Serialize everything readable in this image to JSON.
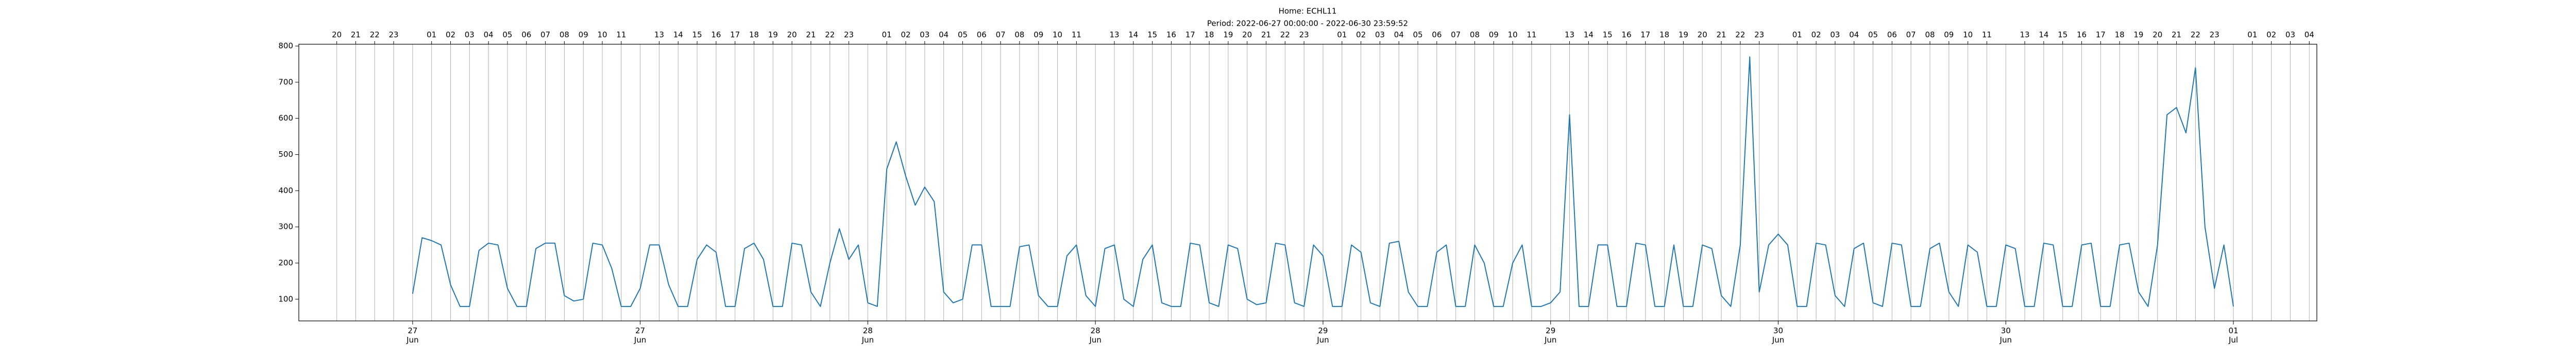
{
  "chart_data": {
    "type": "line",
    "title": "Home: ECHL11",
    "subtitle": "Period: 2022-06-27 00:00:00 - 2022-06-30 23:59:52",
    "color": "#1f77b4",
    "grid": true,
    "xlim": [
      "2022-06-26 18:00",
      "2022-07-01 04:24"
    ],
    "ylim": [
      40,
      805
    ],
    "yticks": [
      100,
      200,
      300,
      400,
      500,
      600,
      700,
      800
    ],
    "xticks": [
      {
        "value": "2022-06-27 00:00",
        "label": "27\nJun"
      },
      {
        "value": "2022-06-27 12:00",
        "label": "27\nJun"
      },
      {
        "value": "2022-06-28 00:00",
        "label": "28\nJun"
      },
      {
        "value": "2022-06-28 12:00",
        "label": "28\nJun"
      },
      {
        "value": "2022-06-29 00:00",
        "label": "29\nJun"
      },
      {
        "value": "2022-06-29 12:00",
        "label": "29\nJun"
      },
      {
        "value": "2022-06-30 00:00",
        "label": "30\nJun"
      },
      {
        "value": "2022-06-30 12:00",
        "label": "30\nJun"
      },
      {
        "value": "2022-07-01 00:00",
        "label": "01\nJul"
      }
    ],
    "x2ticks": [
      {
        "value": "2022-06-26 20:00",
        "label": "20"
      },
      {
        "value": "2022-06-26 21:00",
        "label": "21"
      },
      {
        "value": "2022-06-26 22:00",
        "label": "22"
      },
      {
        "value": "2022-06-26 23:00",
        "label": "23"
      },
      {
        "value": "2022-06-27 01:00",
        "label": "01"
      },
      {
        "value": "2022-06-27 02:00",
        "label": "02"
      },
      {
        "value": "2022-06-27 03:00",
        "label": "03"
      },
      {
        "value": "2022-06-27 04:00",
        "label": "04"
      },
      {
        "value": "2022-06-27 05:00",
        "label": "05"
      },
      {
        "value": "2022-06-27 06:00",
        "label": "06"
      },
      {
        "value": "2022-06-27 07:00",
        "label": "07"
      },
      {
        "value": "2022-06-27 08:00",
        "label": "08"
      },
      {
        "value": "2022-06-27 09:00",
        "label": "09"
      },
      {
        "value": "2022-06-27 10:00",
        "label": "10"
      },
      {
        "value": "2022-06-27 11:00",
        "label": "11"
      },
      {
        "value": "2022-06-27 13:00",
        "label": "13"
      },
      {
        "value": "2022-06-27 14:00",
        "label": "14"
      },
      {
        "value": "2022-06-27 15:00",
        "label": "15"
      },
      {
        "value": "2022-06-27 16:00",
        "label": "16"
      },
      {
        "value": "2022-06-27 17:00",
        "label": "17"
      },
      {
        "value": "2022-06-27 18:00",
        "label": "18"
      },
      {
        "value": "2022-06-27 19:00",
        "label": "19"
      },
      {
        "value": "2022-06-27 20:00",
        "label": "20"
      },
      {
        "value": "2022-06-27 21:00",
        "label": "21"
      },
      {
        "value": "2022-06-27 22:00",
        "label": "22"
      },
      {
        "value": "2022-06-27 23:00",
        "label": "23"
      },
      {
        "value": "2022-06-28 01:00",
        "label": "01"
      },
      {
        "value": "2022-06-28 02:00",
        "label": "02"
      },
      {
        "value": "2022-06-28 03:00",
        "label": "03"
      },
      {
        "value": "2022-06-28 04:00",
        "label": "04"
      },
      {
        "value": "2022-06-28 05:00",
        "label": "05"
      },
      {
        "value": "2022-06-28 06:00",
        "label": "06"
      },
      {
        "value": "2022-06-28 07:00",
        "label": "07"
      },
      {
        "value": "2022-06-28 08:00",
        "label": "08"
      },
      {
        "value": "2022-06-28 09:00",
        "label": "09"
      },
      {
        "value": "2022-06-28 10:00",
        "label": "10"
      },
      {
        "value": "2022-06-28 11:00",
        "label": "11"
      },
      {
        "value": "2022-06-28 13:00",
        "label": "13"
      },
      {
        "value": "2022-06-28 14:00",
        "label": "14"
      },
      {
        "value": "2022-06-28 15:00",
        "label": "15"
      },
      {
        "value": "2022-06-28 16:00",
        "label": "16"
      },
      {
        "value": "2022-06-28 17:00",
        "label": "17"
      },
      {
        "value": "2022-06-28 18:00",
        "label": "18"
      },
      {
        "value": "2022-06-28 19:00",
        "label": "19"
      },
      {
        "value": "2022-06-28 20:00",
        "label": "20"
      },
      {
        "value": "2022-06-28 21:00",
        "label": "21"
      },
      {
        "value": "2022-06-28 22:00",
        "label": "22"
      },
      {
        "value": "2022-06-28 23:00",
        "label": "23"
      },
      {
        "value": "2022-06-29 01:00",
        "label": "01"
      },
      {
        "value": "2022-06-29 02:00",
        "label": "02"
      },
      {
        "value": "2022-06-29 03:00",
        "label": "03"
      },
      {
        "value": "2022-06-29 04:00",
        "label": "04"
      },
      {
        "value": "2022-06-29 05:00",
        "label": "05"
      },
      {
        "value": "2022-06-29 06:00",
        "label": "06"
      },
      {
        "value": "2022-06-29 07:00",
        "label": "07"
      },
      {
        "value": "2022-06-29 08:00",
        "label": "08"
      },
      {
        "value": "2022-06-29 09:00",
        "label": "09"
      },
      {
        "value": "2022-06-29 10:00",
        "label": "10"
      },
      {
        "value": "2022-06-29 11:00",
        "label": "11"
      },
      {
        "value": "2022-06-29 13:00",
        "label": "13"
      },
      {
        "value": "2022-06-29 14:00",
        "label": "14"
      },
      {
        "value": "2022-06-29 15:00",
        "label": "15"
      },
      {
        "value": "2022-06-29 16:00",
        "label": "16"
      },
      {
        "value": "2022-06-29 17:00",
        "label": "17"
      },
      {
        "value": "2022-06-29 18:00",
        "label": "18"
      },
      {
        "value": "2022-06-29 19:00",
        "label": "19"
      },
      {
        "value": "2022-06-29 20:00",
        "label": "20"
      },
      {
        "value": "2022-06-29 21:00",
        "label": "21"
      },
      {
        "value": "2022-06-29 22:00",
        "label": "22"
      },
      {
        "value": "2022-06-29 23:00",
        "label": "23"
      },
      {
        "value": "2022-06-30 01:00",
        "label": "01"
      },
      {
        "value": "2022-06-30 02:00",
        "label": "02"
      },
      {
        "value": "2022-06-30 03:00",
        "label": "03"
      },
      {
        "value": "2022-06-30 04:00",
        "label": "04"
      },
      {
        "value": "2022-06-30 05:00",
        "label": "05"
      },
      {
        "value": "2022-06-30 06:00",
        "label": "06"
      },
      {
        "value": "2022-06-30 07:00",
        "label": "07"
      },
      {
        "value": "2022-06-30 08:00",
        "label": "08"
      },
      {
        "value": "2022-06-30 09:00",
        "label": "09"
      },
      {
        "value": "2022-06-30 10:00",
        "label": "10"
      },
      {
        "value": "2022-06-30 11:00",
        "label": "11"
      },
      {
        "value": "2022-06-30 13:00",
        "label": "13"
      },
      {
        "value": "2022-06-30 14:00",
        "label": "14"
      },
      {
        "value": "2022-06-30 15:00",
        "label": "15"
      },
      {
        "value": "2022-06-30 16:00",
        "label": "16"
      },
      {
        "value": "2022-06-30 17:00",
        "label": "17"
      },
      {
        "value": "2022-06-30 18:00",
        "label": "18"
      },
      {
        "value": "2022-06-30 19:00",
        "label": "19"
      },
      {
        "value": "2022-06-30 20:00",
        "label": "20"
      },
      {
        "value": "2022-06-30 21:00",
        "label": "21"
      },
      {
        "value": "2022-06-30 22:00",
        "label": "22"
      },
      {
        "value": "2022-06-30 23:00",
        "label": "23"
      },
      {
        "value": "2022-07-01 01:00",
        "label": "01"
      },
      {
        "value": "2022-07-01 02:00",
        "label": "02"
      },
      {
        "value": "2022-07-01 03:00",
        "label": "03"
      },
      {
        "value": "2022-07-01 04:00",
        "label": "04"
      }
    ],
    "x": [
      "2022-06-27 00:00",
      "2022-06-27 00:30",
      "2022-06-27 01:00",
      "2022-06-27 01:30",
      "2022-06-27 02:00",
      "2022-06-27 02:30",
      "2022-06-27 03:00",
      "2022-06-27 03:30",
      "2022-06-27 04:00",
      "2022-06-27 04:30",
      "2022-06-27 05:00",
      "2022-06-27 05:30",
      "2022-06-27 06:00",
      "2022-06-27 06:30",
      "2022-06-27 07:00",
      "2022-06-27 07:30",
      "2022-06-27 08:00",
      "2022-06-27 08:30",
      "2022-06-27 09:00",
      "2022-06-27 09:30",
      "2022-06-27 10:00",
      "2022-06-27 10:30",
      "2022-06-27 11:00",
      "2022-06-27 11:30",
      "2022-06-27 12:00",
      "2022-06-27 12:30",
      "2022-06-27 13:00",
      "2022-06-27 13:30",
      "2022-06-27 14:00",
      "2022-06-27 14:30",
      "2022-06-27 15:00",
      "2022-06-27 15:30",
      "2022-06-27 16:00",
      "2022-06-27 16:30",
      "2022-06-27 17:00",
      "2022-06-27 17:30",
      "2022-06-27 18:00",
      "2022-06-27 18:30",
      "2022-06-27 19:00",
      "2022-06-27 19:30",
      "2022-06-27 20:00",
      "2022-06-27 20:30",
      "2022-06-27 21:00",
      "2022-06-27 21:30",
      "2022-06-27 22:00",
      "2022-06-27 22:30",
      "2022-06-27 23:00",
      "2022-06-27 23:30",
      "2022-06-28 00:00",
      "2022-06-28 00:30",
      "2022-06-28 01:00",
      "2022-06-28 01:30",
      "2022-06-28 02:00",
      "2022-06-28 02:30",
      "2022-06-28 03:00",
      "2022-06-28 03:30",
      "2022-06-28 04:00",
      "2022-06-28 04:30",
      "2022-06-28 05:00",
      "2022-06-28 05:30",
      "2022-06-28 06:00",
      "2022-06-28 06:30",
      "2022-06-28 07:00",
      "2022-06-28 07:30",
      "2022-06-28 08:00",
      "2022-06-28 08:30",
      "2022-06-28 09:00",
      "2022-06-28 09:30",
      "2022-06-28 10:00",
      "2022-06-28 10:30",
      "2022-06-28 11:00",
      "2022-06-28 11:30",
      "2022-06-28 12:00",
      "2022-06-28 12:30",
      "2022-06-28 13:00",
      "2022-06-28 13:30",
      "2022-06-28 14:00",
      "2022-06-28 14:30",
      "2022-06-28 15:00",
      "2022-06-28 15:30",
      "2022-06-28 16:00",
      "2022-06-28 16:30",
      "2022-06-28 17:00",
      "2022-06-28 17:30",
      "2022-06-28 18:00",
      "2022-06-28 18:30",
      "2022-06-28 19:00",
      "2022-06-28 19:30",
      "2022-06-28 20:00",
      "2022-06-28 20:30",
      "2022-06-28 21:00",
      "2022-06-28 21:30",
      "2022-06-28 22:00",
      "2022-06-28 22:30",
      "2022-06-28 23:00",
      "2022-06-28 23:30",
      "2022-06-29 00:00",
      "2022-06-29 00:30",
      "2022-06-29 01:00",
      "2022-06-29 01:30",
      "2022-06-29 02:00",
      "2022-06-29 02:30",
      "2022-06-29 03:00",
      "2022-06-29 03:30",
      "2022-06-29 04:00",
      "2022-06-29 04:30",
      "2022-06-29 05:00",
      "2022-06-29 05:30",
      "2022-06-29 06:00",
      "2022-06-29 06:30",
      "2022-06-29 07:00",
      "2022-06-29 07:30",
      "2022-06-29 08:00",
      "2022-06-29 08:30",
      "2022-06-29 09:00",
      "2022-06-29 09:30",
      "2022-06-29 10:00",
      "2022-06-29 10:30",
      "2022-06-29 11:00",
      "2022-06-29 11:30",
      "2022-06-29 12:00",
      "2022-06-29 12:30",
      "2022-06-29 13:00",
      "2022-06-29 13:30",
      "2022-06-29 14:00",
      "2022-06-29 14:30",
      "2022-06-29 15:00",
      "2022-06-29 15:30",
      "2022-06-29 16:00",
      "2022-06-29 16:30",
      "2022-06-29 17:00",
      "2022-06-29 17:30",
      "2022-06-29 18:00",
      "2022-06-29 18:30",
      "2022-06-29 19:00",
      "2022-06-29 19:30",
      "2022-06-29 20:00",
      "2022-06-29 20:30",
      "2022-06-29 21:00",
      "2022-06-29 21:30",
      "2022-06-29 22:00",
      "2022-06-29 22:30",
      "2022-06-29 23:00",
      "2022-06-29 23:30",
      "2022-06-30 00:00",
      "2022-06-30 00:30",
      "2022-06-30 01:00",
      "2022-06-30 01:30",
      "2022-06-30 02:00",
      "2022-06-30 02:30",
      "2022-06-30 03:00",
      "2022-06-30 03:30",
      "2022-06-30 04:00",
      "2022-06-30 04:30",
      "2022-06-30 05:00",
      "2022-06-30 05:30",
      "2022-06-30 06:00",
      "2022-06-30 06:30",
      "2022-06-30 07:00",
      "2022-06-30 07:30",
      "2022-06-30 08:00",
      "2022-06-30 08:30",
      "2022-06-30 09:00",
      "2022-06-30 09:30",
      "2022-06-30 10:00",
      "2022-06-30 10:30",
      "2022-06-30 11:00",
      "2022-06-30 11:30",
      "2022-06-30 12:00",
      "2022-06-30 12:30",
      "2022-06-30 13:00",
      "2022-06-30 13:30",
      "2022-06-30 14:00",
      "2022-06-30 14:30",
      "2022-06-30 15:00",
      "2022-06-30 15:30",
      "2022-06-30 16:00",
      "2022-06-30 16:30",
      "2022-06-30 17:00",
      "2022-06-30 17:30",
      "2022-06-30 18:00",
      "2022-06-30 18:30",
      "2022-06-30 19:00",
      "2022-06-30 19:30",
      "2022-06-30 20:00",
      "2022-06-30 20:30",
      "2022-06-30 21:00",
      "2022-06-30 21:30",
      "2022-06-30 22:00",
      "2022-06-30 22:30",
      "2022-06-30 23:00",
      "2022-06-30 23:30",
      "2022-07-01 00:00"
    ],
    "values": [
      115,
      270,
      262,
      250,
      140,
      80,
      80,
      235,
      255,
      250,
      130,
      80,
      80,
      240,
      255,
      255,
      110,
      95,
      100,
      255,
      250,
      185,
      80,
      80,
      130,
      250,
      250,
      140,
      80,
      80,
      210,
      250,
      230,
      80,
      80,
      240,
      255,
      210,
      80,
      80,
      255,
      250,
      120,
      80,
      200,
      295,
      210,
      250,
      90,
      80,
      460,
      535,
      440,
      360,
      410,
      370,
      120,
      90,
      100,
      250,
      250,
      80,
      80,
      80,
      245,
      250,
      110,
      80,
      80,
      220,
      250,
      110,
      80,
      240,
      250,
      100,
      80,
      210,
      250,
      90,
      80,
      80,
      255,
      250,
      90,
      80,
      250,
      240,
      100,
      85,
      90,
      255,
      250,
      90,
      80,
      250,
      220,
      80,
      80,
      250,
      230,
      90,
      80,
      255,
      260,
      120,
      80,
      80,
      230,
      250,
      80,
      80,
      250,
      200,
      80,
      80,
      200,
      250,
      80,
      80,
      90,
      120,
      610,
      80,
      80,
      250,
      250,
      80,
      80,
      255,
      250,
      80,
      80,
      250,
      80,
      80,
      250,
      240,
      110,
      80,
      250,
      770,
      120,
      250,
      280,
      250,
      80,
      80,
      255,
      250,
      110,
      80,
      240,
      255,
      90,
      80,
      255,
      250,
      80,
      80,
      240,
      255,
      120,
      80,
      250,
      230,
      80,
      80,
      250,
      240,
      80,
      80,
      255,
      250,
      80,
      80,
      250,
      255,
      80,
      80,
      250,
      255,
      120,
      80,
      250,
      610,
      630,
      560,
      740,
      300,
      130,
      250,
      80
    ]
  }
}
